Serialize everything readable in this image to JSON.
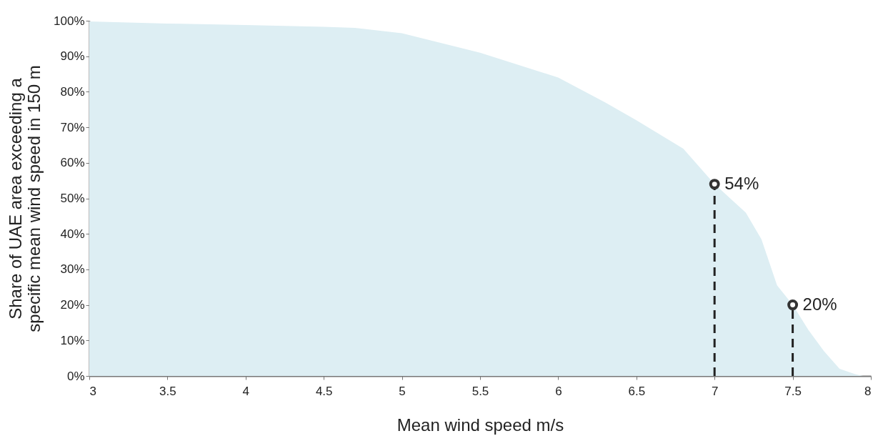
{
  "chart_data": {
    "type": "area",
    "xlabel": "Mean wind speed m/s",
    "ylabel": "Share of UAE area exceeding a\nspecific mean wind speed in 150 m",
    "x": [
      3,
      3.5,
      4,
      4.5,
      4.7,
      5,
      5.5,
      6,
      6.3,
      6.5,
      6.8,
      7,
      7.2,
      7.3,
      7.4,
      7.5,
      7.6,
      7.7,
      7.8,
      7.9,
      7.95
    ],
    "series": [
      {
        "color": "#ddeef3",
        "values": [
          99.8,
          99.2,
          98.8,
          98.3,
          98,
          96.5,
          91,
          84,
          77,
          72,
          64,
          54,
          46,
          38.5,
          25.5,
          20,
          13,
          7,
          2,
          0.5,
          0
        ]
      }
    ],
    "xlim": [
      3,
      8
    ],
    "xticks": [
      3,
      3.5,
      4,
      4.5,
      5,
      5.5,
      6,
      6.5,
      7,
      7.5,
      8
    ],
    "ylim": [
      0,
      100
    ],
    "yticks": [
      {
        "value": 0,
        "label": "0%"
      },
      {
        "value": 10,
        "label": "10%"
      },
      {
        "value": 20,
        "label": "20%"
      },
      {
        "value": 30,
        "label": "30%"
      },
      {
        "value": 40,
        "label": "40%"
      },
      {
        "value": 50,
        "label": "50%"
      },
      {
        "value": 60,
        "label": "60%"
      },
      {
        "value": 70,
        "label": "70%"
      },
      {
        "value": 80,
        "label": "80%"
      },
      {
        "value": 90,
        "label": "90%"
      },
      {
        "value": 100,
        "label": "100%"
      }
    ],
    "annotations": [
      {
        "text": "54%",
        "x": 7,
        "y": 54
      },
      {
        "text": "20%",
        "x": 7.5,
        "y": 20
      }
    ],
    "grid": false
  }
}
